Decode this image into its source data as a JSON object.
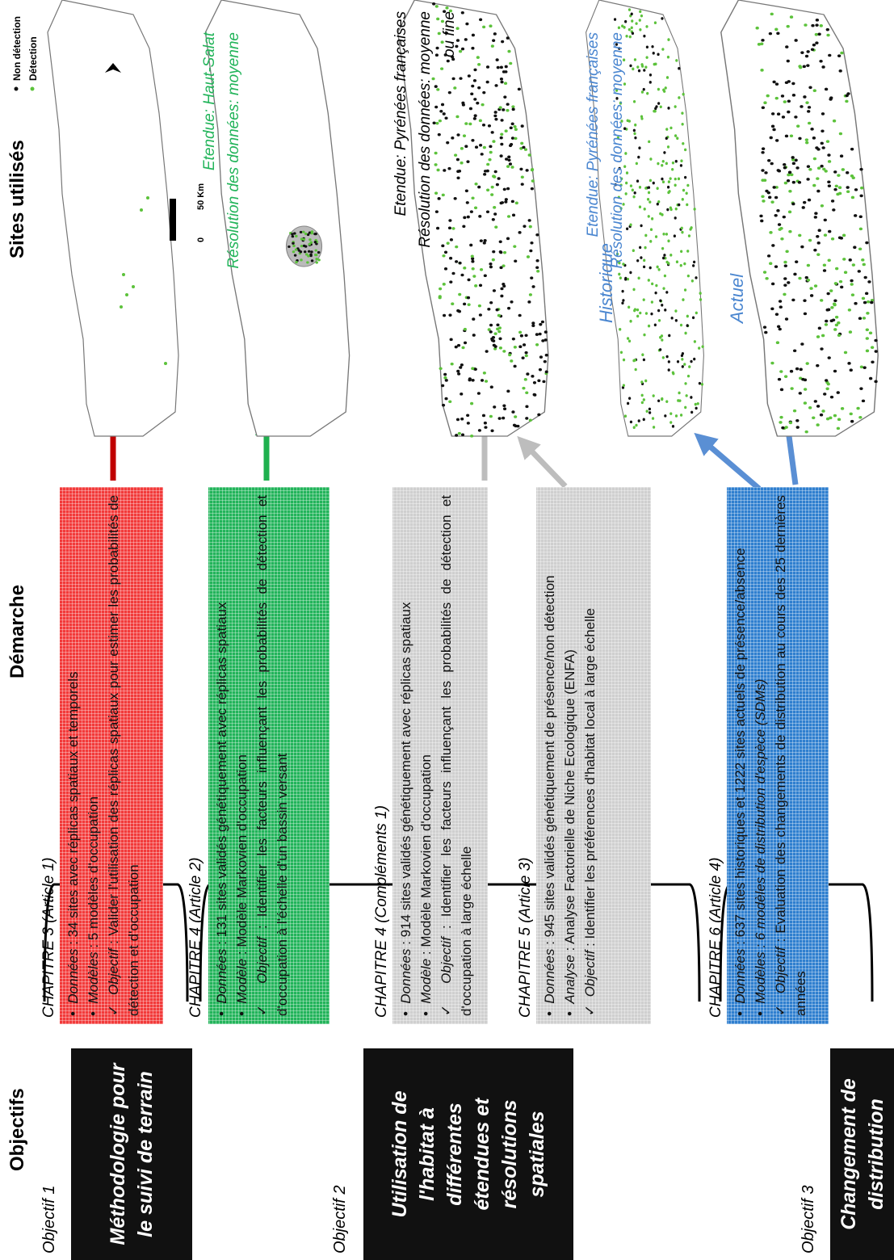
{
  "headers": {
    "objectifs": "Objectifs",
    "demarche": "Démarche",
    "sites": "Sites utilisés"
  },
  "objectives": [
    {
      "label": "Objectif 1",
      "title": "Méthodologie pour le suivi de terrain"
    },
    {
      "label": "Objectif 2",
      "title": "Utilisation de l'habitat à différentes étendues et résolutions spatiales"
    },
    {
      "label": "Objectif 3",
      "title": "Changement de distribution"
    }
  ],
  "chapters": [
    {
      "title": "CHAPITRE 3 (Article 1)",
      "color": "#f23a3a",
      "items": [
        {
          "marker": "•",
          "label": "Données",
          "text": " : 34 sites avec réplicas spatiaux et temporels"
        },
        {
          "marker": "•",
          "label": "Modèles",
          "text": " : 5 modèles d'occupation"
        },
        {
          "marker": "✓",
          "label": "Objectif",
          "text": " : Valider l'utilisation des réplicas spatiaux pour estimer les probabilités de détection et d'occupation"
        }
      ]
    },
    {
      "title": "CHAPITRE 4 (Article 2)",
      "color": "#22b45a",
      "items": [
        {
          "marker": "•",
          "label": "Données",
          "text": " : 131 sites validés génétiquement avec réplicas spatiaux"
        },
        {
          "marker": "•",
          "label": "Modèle",
          "text": " : Modèle Markovien d'occupation"
        },
        {
          "marker": "✓",
          "label": "Objectif",
          "text": " : Identifier les facteurs influençant les probabilités de détection et d'occupation à l'échelle d'un bassin versant"
        }
      ]
    },
    {
      "title": "CHAPITRE 4 (Compléments 1)",
      "color": "#cfcfcf",
      "items": [
        {
          "marker": "•",
          "label": "Données",
          "text": " : 914 sites validés génétiquement avec réplicas spatiaux"
        },
        {
          "marker": "•",
          "label": "Modèle",
          "text": " : Modèle Markovien d'occupation"
        },
        {
          "marker": "✓",
          "label": "Objectif",
          "text": " : Identifier les facteurs influençant les probabilités de détection et d'occupation à large échelle"
        }
      ]
    },
    {
      "title": "CHAPITRE 5 (Article 3)",
      "color": "#cfcfcf",
      "items": [
        {
          "marker": "•",
          "label": "Données",
          "text": " : 945 sites validés génétiquement de présence/non détection"
        },
        {
          "marker": "•",
          "label": "Analyse",
          "text": " : Analyse Factorielle de Niche Ecologique (ENFA)"
        },
        {
          "marker": "✓",
          "label": "Objectif",
          "text": " : Identifier les préférences d'habitat local à large échelle"
        }
      ]
    },
    {
      "title": "CHAPITRE 6 (Article 4)",
      "color": "#2f7fcf",
      "items": [
        {
          "marker": "•",
          "label": "Données",
          "text": " : 637 sites historiques et 1222 sites actuels de présence/absence"
        },
        {
          "marker": "•",
          "label": "Modèles",
          "text": " : 6 modèles de distribution d'espèce (SDMs)",
          "italic": true
        },
        {
          "marker": "✓",
          "label": "Objectif",
          "text": " : Evaluation des changements de distribution au cours des 25 dernières années"
        }
      ]
    }
  ],
  "map_legend": {
    "non_detection": "Non détection",
    "detection": "Détection",
    "scale_zero": "0",
    "scale_label": "50 Km"
  },
  "map_notes": [
    {
      "color": "#22b45a",
      "lines": [
        "Etendue: Haut-Salat",
        "Résolution des données: moyenne"
      ]
    },
    {
      "color": "#000000",
      "lines": [
        "Etendue: Pyrénées françaises",
        "Résolution des données: moyenne",
        "ou fine"
      ]
    },
    {
      "color": "#4a86d0",
      "lines": [
        "Etendue: Pyrénées françaises",
        "Résolution des données: moyenne"
      ]
    }
  ],
  "period_labels": [
    "Historique",
    "Actuel"
  ]
}
